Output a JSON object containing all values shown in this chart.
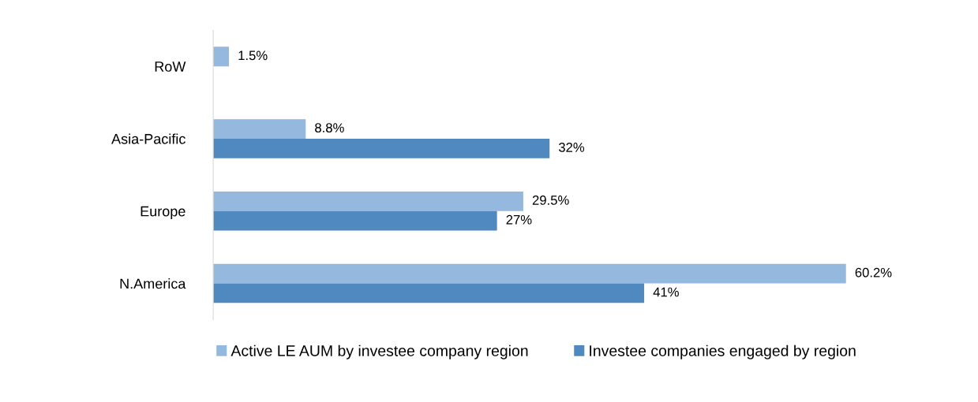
{
  "chart_data": {
    "type": "bar",
    "orientation": "horizontal",
    "relative": false,
    "categories": [
      "RoW",
      "Asia-Pacific",
      "Europe",
      "N.America"
    ],
    "series": [
      {
        "name": "Active LE AUM by investee company region",
        "color": "#95b8df",
        "values": [
          1.5,
          8.8,
          29.5,
          60.2
        ],
        "value_labels": [
          "1.5%",
          "8.8%",
          "29.5%",
          "60.2%"
        ]
      },
      {
        "name": "Investee companies engaged by region",
        "color": "#4f89bf",
        "values": [
          null,
          32,
          27,
          41
        ],
        "value_labels": [
          null,
          "32%",
          "27%",
          "41%"
        ]
      }
    ],
    "legend": "bottom",
    "grid": false,
    "tick_labels": "y"
  }
}
